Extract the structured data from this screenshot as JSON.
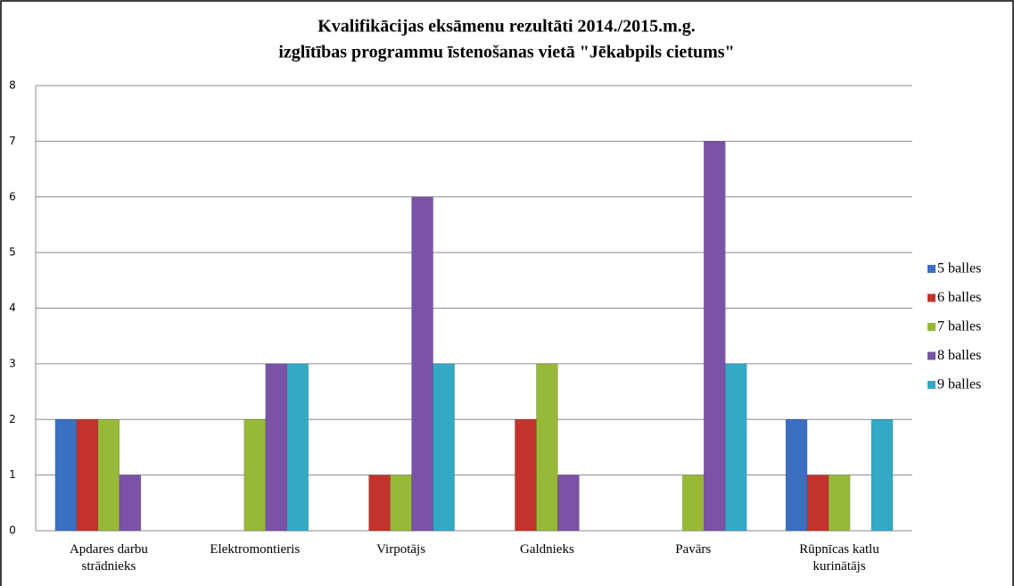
{
  "chart_data": {
    "type": "bar",
    "title": [
      "Kvalifikācijas eksāmenu rezultāti 2014./2015.m.g.",
      "izglītības programmu īstenošanas vietā \"Jēkabpils cietums\""
    ],
    "categories": [
      "Apdares darbu strādnieks",
      "Elektromontieris",
      "Virpotājs",
      "Galdnieks",
      "Pavārs",
      "Rūpnīcas katlu kurinātājs"
    ],
    "series": [
      {
        "name": "5 balles",
        "color": "#3b6fc2",
        "values": [
          2,
          0,
          0,
          0,
          0,
          2
        ]
      },
      {
        "name": "6 balles",
        "color": "#c1332c",
        "values": [
          2,
          0,
          1,
          2,
          0,
          1
        ]
      },
      {
        "name": "7 balles",
        "color": "#98b83a",
        "values": [
          2,
          2,
          1,
          3,
          1,
          1
        ]
      },
      {
        "name": "8 balles",
        "color": "#7a52a6",
        "values": [
          1,
          3,
          6,
          1,
          7,
          0
        ]
      },
      {
        "name": "9 balles",
        "color": "#33a9c6",
        "values": [
          0,
          3,
          3,
          0,
          3,
          2
        ]
      }
    ],
    "ylim": [
      0,
      8
    ],
    "yticks": [
      0,
      1,
      2,
      3,
      4,
      5,
      6,
      7,
      8
    ],
    "grid": true,
    "legend": "right"
  }
}
